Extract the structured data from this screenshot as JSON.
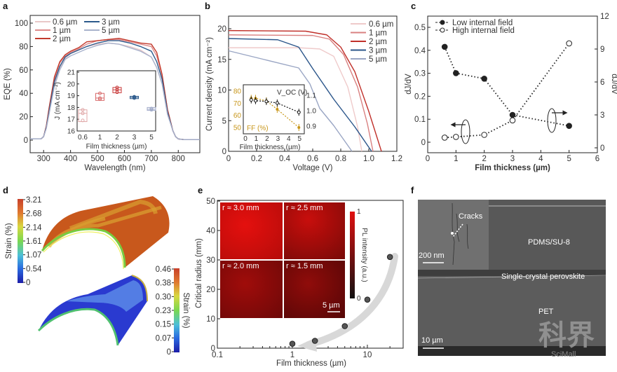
{
  "panels": {
    "a": {
      "letter": "a"
    },
    "b": {
      "letter": "b"
    },
    "c": {
      "letter": "c"
    },
    "d": {
      "letter": "d"
    },
    "e": {
      "letter": "e"
    },
    "f": {
      "letter": "f"
    }
  },
  "chart_data": [
    {
      "id": "a",
      "type": "line",
      "title": "",
      "xlabel": "Wavelength (nm)",
      "ylabel": "EQE (%)",
      "xlim": [
        250,
        880
      ],
      "ylim": [
        -10,
        105
      ],
      "xticks": [
        300,
        400,
        500,
        600,
        700,
        800
      ],
      "yticks": [
        0,
        20,
        40,
        60,
        80,
        100
      ],
      "legend": "top-left",
      "x": [
        250,
        290,
        300,
        310,
        320,
        340,
        360,
        380,
        400,
        430,
        460,
        500,
        540,
        580,
        620,
        660,
        700,
        720,
        740,
        760,
        780,
        790,
        800,
        820,
        880
      ],
      "series": [
        {
          "name": "0.6 µm",
          "color": "#e9c8c8",
          "values": [
            1,
            1,
            3,
            10,
            22,
            48,
            62,
            70,
            74,
            77,
            80,
            82,
            83,
            82,
            80,
            77,
            71,
            62,
            48,
            22,
            8,
            3,
            1,
            0.5,
            0.5
          ]
        },
        {
          "name": "1 µm",
          "color": "#de8a8a",
          "values": [
            1,
            1,
            3,
            12,
            26,
            52,
            66,
            72,
            75,
            78,
            82,
            85,
            86,
            86,
            84,
            82,
            80,
            72,
            55,
            26,
            8,
            3,
            1,
            0.5,
            0.5
          ]
        },
        {
          "name": "2 µm",
          "color": "#c23a2c",
          "values": [
            1,
            1,
            3,
            12,
            27,
            54,
            67,
            73,
            76,
            79,
            84,
            85,
            86,
            87,
            85,
            83,
            82,
            75,
            56,
            26,
            8,
            3,
            1,
            0.5,
            0.5
          ]
        },
        {
          "name": "3 µm",
          "color": "#2c5a8c",
          "values": [
            1,
            1,
            3,
            11,
            24,
            50,
            63,
            71,
            74,
            77,
            80,
            83,
            85,
            85,
            83,
            80,
            76,
            67,
            52,
            24,
            8,
            3,
            1,
            0.5,
            0.5
          ]
        },
        {
          "name": "5 µm",
          "color": "#a8b2cc",
          "values": [
            1,
            1,
            3,
            10,
            22,
            46,
            60,
            69,
            72,
            75,
            78,
            81,
            83,
            82,
            79,
            76,
            71,
            62,
            48,
            22,
            8,
            3,
            1,
            0.5,
            0.5
          ]
        }
      ],
      "inset": {
        "type": "box",
        "xlabel": "Film thickness (µm)",
        "ylabel": "J (mA cm⁻²)",
        "ylim": [
          16,
          21
        ],
        "yticks": [
          16,
          17,
          18,
          19,
          20,
          21
        ],
        "categories": [
          "0.6",
          "1",
          "2",
          "3",
          "5"
        ],
        "colors": [
          "#e0a8a8",
          "#d86a6a",
          "#c83a3a",
          "#2c5a8c",
          "#a0aac8"
        ],
        "points": [
          [
            16.9,
            17.5,
            17.8
          ],
          [
            18.7,
            18.8,
            19.2
          ],
          [
            19.3,
            19.5,
            19.7
          ],
          [
            18.8,
            18.9,
            18.9
          ],
          [
            17.8,
            17.9,
            17.9
          ]
        ],
        "box": [
          [
            16.8,
            17.5,
            17.8
          ],
          [
            18.6,
            18.8,
            19.2
          ],
          [
            19.25,
            19.5,
            19.7
          ],
          [
            18.75,
            18.85,
            18.95
          ],
          [
            17.75,
            17.85,
            18.0
          ]
        ]
      }
    },
    {
      "id": "b",
      "type": "line",
      "title": "",
      "xlabel": "Voltage (V)",
      "ylabel": "Current density (mA cm⁻²)",
      "xlim": [
        0,
        1.2
      ],
      "ylim": [
        0,
        22
      ],
      "xticks": [
        0,
        0.2,
        0.4,
        0.6,
        0.8,
        1.0,
        1.2
      ],
      "xtick_labels": [
        "0",
        "0.2",
        "0.4",
        "0.6",
        "0.8",
        "1.0",
        "1.2"
      ],
      "yticks": [
        0,
        5,
        10,
        15,
        20
      ],
      "legend": "top-right",
      "series": [
        {
          "name": "0.6 µm",
          "color": "#efcaca",
          "x": [
            0,
            0.5,
            0.65,
            0.75,
            0.85,
            0.92,
            0.95
          ],
          "values": [
            16.9,
            16.9,
            16.7,
            15.5,
            10.5,
            4,
            0
          ]
        },
        {
          "name": "1 µm",
          "color": "#d98080",
          "x": [
            0,
            0.6,
            0.72,
            0.82,
            0.92,
            0.99,
            1.03
          ],
          "values": [
            19.0,
            18.9,
            18.3,
            15.8,
            10.5,
            4.5,
            0
          ]
        },
        {
          "name": "2 µm",
          "color": "#c0302a",
          "x": [
            0,
            0.55,
            0.7,
            0.8,
            0.9,
            1.0,
            1.09
          ],
          "values": [
            19.7,
            19.6,
            19.0,
            17.0,
            13.0,
            6.5,
            0
          ]
        },
        {
          "name": "3 µm",
          "color": "#2a558a",
          "x": [
            0,
            0.35,
            0.5,
            0.6,
            0.75,
            0.9,
            1.02
          ],
          "values": [
            18.4,
            18.2,
            17.0,
            13.5,
            8.5,
            4.0,
            0
          ]
        },
        {
          "name": "5 µm",
          "color": "#9aa6c4",
          "x": [
            0,
            0.25,
            0.5,
            0.58,
            0.65,
            0.75,
            0.88
          ],
          "values": [
            16.4,
            15.0,
            13.6,
            11.0,
            7.0,
            4.2,
            0
          ]
        }
      ],
      "inset": {
        "type": "scatter",
        "xlabel": "Film thickness (µm)",
        "xlim": [
          0,
          5.5
        ],
        "xticks": [
          0,
          1,
          2,
          3,
          4,
          5
        ],
        "left_label": "FF (%)",
        "left_ylim": [
          45,
          83
        ],
        "left_yticks": [
          50,
          60,
          70,
          80
        ],
        "left_color": "#c8961a",
        "right_label": "V_OC (V)",
        "right_ylim": [
          0.86,
          1.15
        ],
        "right_yticks": [
          0.9,
          1.0,
          1.1
        ],
        "right_tick_labels": [
          "0.9",
          "1.0",
          "1.1"
        ],
        "x": [
          0.6,
          1,
          2,
          3,
          5
        ],
        "ff": [
          74,
          74,
          72,
          65,
          50
        ],
        "voc": [
          1.07,
          1.065,
          1.06,
          1.05,
          0.99
        ]
      }
    },
    {
      "id": "c",
      "type": "scatter",
      "title": "",
      "xlabel": "Film thickness (µm)",
      "ylabel_left": "dJ/dV",
      "ylabel_right": "dJ/dV",
      "xlim": [
        0,
        6
      ],
      "ylim_left": [
        -0.05,
        0.55
      ],
      "ylim_right": [
        -0.35,
        12
      ],
      "xticks": [
        0,
        1,
        2,
        3,
        4,
        5,
        6
      ],
      "yticks_left": [
        0,
        0.1,
        0.2,
        0.3,
        0.4,
        0.5
      ],
      "yticks_right": [
        0,
        3,
        6,
        9,
        12
      ],
      "legend": "top-left",
      "series": [
        {
          "name": "Low internal field",
          "marker": "filled",
          "axis": "right",
          "x": [
            0.6,
            1,
            2,
            3,
            5
          ],
          "values": [
            9.2,
            6.8,
            6.3,
            3.0,
            2.0
          ]
        },
        {
          "name": "High internal field",
          "marker": "open",
          "axis": "left",
          "x": [
            0.6,
            1,
            2,
            3,
            5
          ],
          "values": [
            0.02,
            0.023,
            0.032,
            0.095,
            0.43
          ]
        }
      ]
    },
    {
      "id": "e",
      "type": "scatter",
      "title": "",
      "xlabel": "Film thickness (µm)",
      "ylabel": "Critical radius (mm)",
      "xscale": "log",
      "xlim": [
        0.1,
        30
      ],
      "ylim": [
        0,
        50
      ],
      "xticks": [
        0.1,
        1,
        10
      ],
      "xtick_labels": [
        "0.1",
        "1",
        "10"
      ],
      "yticks": [
        0,
        10,
        20,
        30,
        40,
        50
      ],
      "x": [
        1,
        2,
        5,
        10,
        20
      ],
      "values": [
        1.5,
        2.5,
        7.5,
        16.5,
        31
      ]
    }
  ],
  "panel_d": {
    "top_colorbar": {
      "label": "Strain (%)",
      "ticks": [
        "3.21",
        "2.68",
        "2.14",
        "1.61",
        "1.07",
        "0.54",
        "0"
      ]
    },
    "bottom_colorbar": {
      "label": "Strain (%)",
      "ticks": [
        "0.46",
        "0.38",
        "0.30",
        "0.23",
        "0.15",
        "0.07",
        "0"
      ]
    }
  },
  "panel_e_images": {
    "labels": [
      "r ≈ 3.0 mm",
      "r ≈ 2.5 mm",
      "r ≈ 2.0 mm",
      "r ≈ 1.5 mm"
    ],
    "scale_bar": "5 µm",
    "colorbar": {
      "label": "PL intensity (a.u.)",
      "max": "1",
      "min": "0"
    }
  },
  "panel_f": {
    "inset_label": "Cracks",
    "inset_scale": "200 nm",
    "layers": [
      "PDMS/SU-8",
      "Single-crystal perovskite",
      "PET"
    ],
    "scale_bar": "10 µm",
    "watermark": "科界",
    "watermark_sub": "SciMall"
  }
}
